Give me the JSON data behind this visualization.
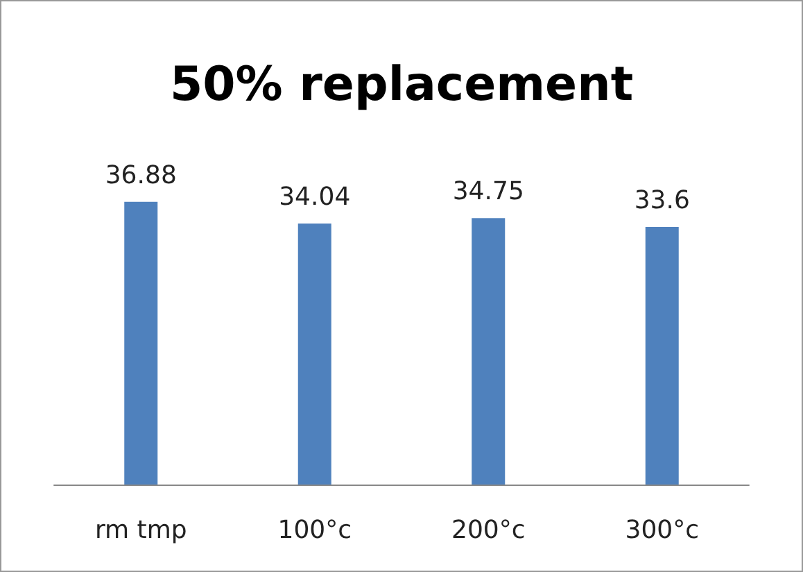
{
  "chart_data": {
    "type": "bar",
    "title": "50% replacement",
    "categories": [
      "rm tmp",
      "100°c",
      "200°c",
      "300°c"
    ],
    "values": [
      36.88,
      34.04,
      34.75,
      33.6
    ],
    "color": "#4f81bd",
    "data_labels": true
  }
}
